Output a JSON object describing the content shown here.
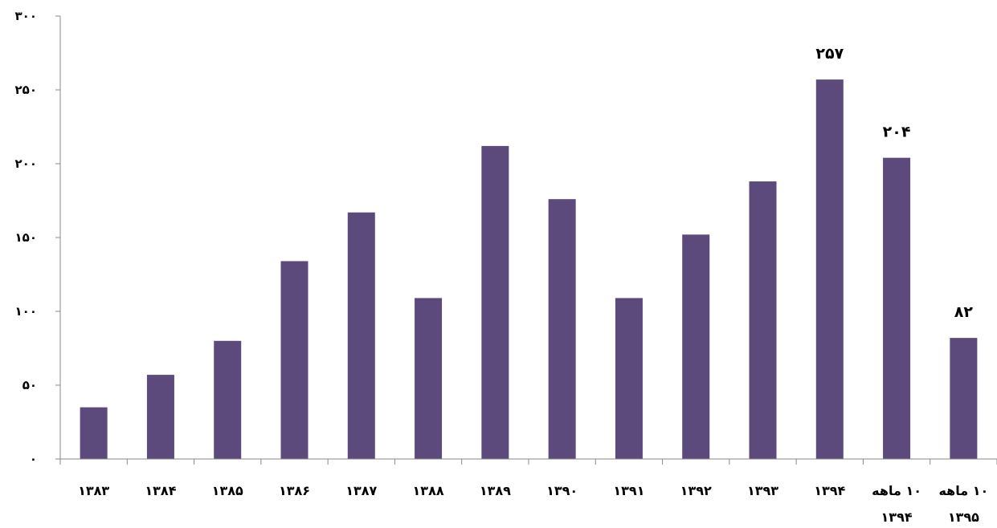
{
  "chart_data": {
    "type": "bar",
    "categories": [
      [
        "۱۳۸۳"
      ],
      [
        "۱۳۸۴"
      ],
      [
        "۱۳۸۵"
      ],
      [
        "۱۳۸۶"
      ],
      [
        "۱۳۸۷"
      ],
      [
        "۱۳۸۸"
      ],
      [
        "۱۳۸۹"
      ],
      [
        "۱۳۹۰"
      ],
      [
        "۱۳۹۱"
      ],
      [
        "۱۳۹۲"
      ],
      [
        "۱۳۹۳"
      ],
      [
        "۱۳۹۴"
      ],
      [
        "۱۰ ماهه",
        "۱۳۹۴"
      ],
      [
        "۱۰ ماهه",
        "۱۳۹۵"
      ]
    ],
    "values": [
      35,
      57,
      80,
      134,
      167,
      109,
      212,
      176,
      109,
      152,
      188,
      257,
      204,
      82
    ],
    "data_labels": [
      "",
      "",
      "",
      "",
      "",
      "",
      "",
      "",
      "",
      "",
      "",
      "۲۵۷",
      "۲۰۴",
      "۸۲"
    ],
    "ylim": [
      0,
      300
    ],
    "yticks": [
      0,
      50,
      100,
      150,
      200,
      250,
      300
    ],
    "ytick_labels": [
      "۰",
      "۵۰",
      "۱۰۰",
      "۱۵۰",
      "۲۰۰",
      "۲۵۰",
      "۳۰۰"
    ],
    "bar_color": "#5c4a7d",
    "grid": false,
    "title": "",
    "xlabel": "",
    "ylabel": ""
  }
}
